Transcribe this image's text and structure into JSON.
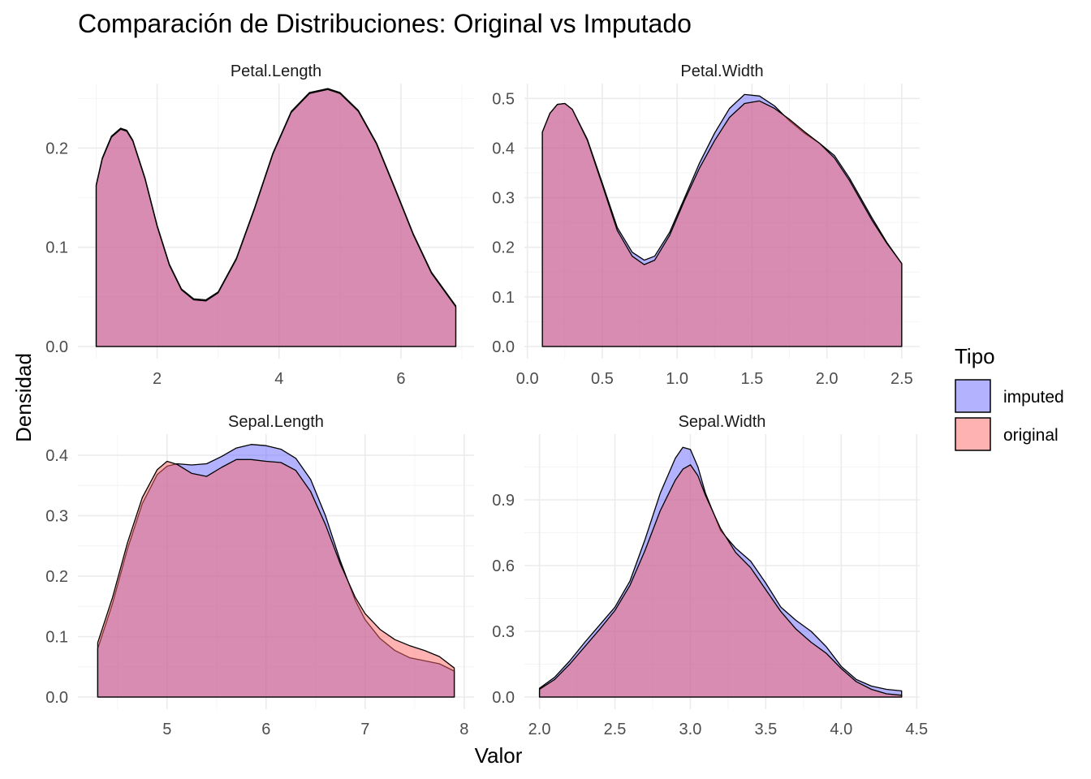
{
  "title": "Comparación de Distribuciones: Original vs Imputado",
  "xlabel": "Valor",
  "ylabel": "Densidad",
  "legend": {
    "title": "Tipo",
    "items": [
      {
        "label": "imputed",
        "color": "#6666ff"
      },
      {
        "label": "original",
        "color": "#ff6666"
      }
    ]
  },
  "colors": {
    "imputed": "#6666ff",
    "original": "#ff6666",
    "outline": "#000000"
  },
  "chart_data": [
    {
      "type": "area",
      "facet": "Petal.Length",
      "xlim": [
        0.7,
        7.2
      ],
      "ylim": [
        0,
        0.265
      ],
      "xticks": [
        2,
        4,
        6
      ],
      "xtick_labels": [
        "2",
        "4",
        "6"
      ],
      "yticks": [
        0.0,
        0.1,
        0.2
      ],
      "ytick_labels": [
        "0.0",
        "0.1",
        "0.2"
      ],
      "series": [
        {
          "name": "imputed",
          "x": [
            1.0,
            1.1,
            1.25,
            1.4,
            1.5,
            1.6,
            1.8,
            2.0,
            2.2,
            2.4,
            2.6,
            2.8,
            3.0,
            3.3,
            3.6,
            3.9,
            4.2,
            4.5,
            4.8,
            5.0,
            5.3,
            5.6,
            5.9,
            6.2,
            6.5,
            6.9
          ],
          "y": [
            0.163,
            0.19,
            0.212,
            0.22,
            0.218,
            0.208,
            0.17,
            0.122,
            0.083,
            0.058,
            0.048,
            0.047,
            0.055,
            0.089,
            0.14,
            0.195,
            0.237,
            0.256,
            0.26,
            0.256,
            0.238,
            0.205,
            0.16,
            0.114,
            0.075,
            0.041
          ]
        },
        {
          "name": "original",
          "x": [
            1.0,
            1.1,
            1.25,
            1.4,
            1.5,
            1.6,
            1.8,
            2.0,
            2.2,
            2.4,
            2.6,
            2.8,
            3.0,
            3.3,
            3.6,
            3.9,
            4.2,
            4.5,
            4.8,
            5.0,
            5.3,
            5.6,
            5.9,
            6.2,
            6.5,
            6.9
          ],
          "y": [
            0.162,
            0.189,
            0.211,
            0.219,
            0.217,
            0.207,
            0.169,
            0.121,
            0.082,
            0.057,
            0.047,
            0.046,
            0.054,
            0.088,
            0.139,
            0.194,
            0.236,
            0.255,
            0.259,
            0.255,
            0.237,
            0.204,
            0.159,
            0.113,
            0.074,
            0.04
          ]
        }
      ]
    },
    {
      "type": "area",
      "facet": "Petal.Width",
      "xlim": [
        -0.02,
        2.62
      ],
      "ylim": [
        0,
        0.53
      ],
      "xticks": [
        0.0,
        0.5,
        1.0,
        1.5,
        2.0,
        2.5
      ],
      "xtick_labels": [
        "0.0",
        "0.5",
        "1.0",
        "1.5",
        "2.0",
        "2.5"
      ],
      "yticks": [
        0.0,
        0.1,
        0.2,
        0.3,
        0.4,
        0.5
      ],
      "ytick_labels": [
        "0.0",
        "0.1",
        "0.2",
        "0.3",
        "0.4",
        "0.5"
      ],
      "series": [
        {
          "name": "imputed",
          "x": [
            0.1,
            0.15,
            0.2,
            0.25,
            0.3,
            0.4,
            0.5,
            0.6,
            0.7,
            0.78,
            0.85,
            0.95,
            1.05,
            1.15,
            1.25,
            1.35,
            1.45,
            1.55,
            1.65,
            1.75,
            1.85,
            1.95,
            2.05,
            2.15,
            2.3,
            2.4,
            2.5
          ],
          "y": [
            0.432,
            0.47,
            0.488,
            0.49,
            0.478,
            0.418,
            0.33,
            0.24,
            0.19,
            0.174,
            0.182,
            0.23,
            0.3,
            0.37,
            0.43,
            0.48,
            0.508,
            0.505,
            0.485,
            0.455,
            0.43,
            0.41,
            0.385,
            0.34,
            0.26,
            0.21,
            0.167
          ]
        },
        {
          "name": "original",
          "x": [
            0.1,
            0.15,
            0.2,
            0.25,
            0.3,
            0.4,
            0.5,
            0.6,
            0.7,
            0.78,
            0.85,
            0.95,
            1.05,
            1.15,
            1.25,
            1.35,
            1.45,
            1.55,
            1.65,
            1.75,
            1.85,
            1.95,
            2.05,
            2.15,
            2.3,
            2.4,
            2.5
          ],
          "y": [
            0.432,
            0.47,
            0.488,
            0.49,
            0.478,
            0.416,
            0.326,
            0.234,
            0.182,
            0.165,
            0.174,
            0.224,
            0.295,
            0.36,
            0.415,
            0.462,
            0.49,
            0.495,
            0.48,
            0.458,
            0.433,
            0.41,
            0.38,
            0.335,
            0.255,
            0.208,
            0.167
          ]
        }
      ]
    },
    {
      "type": "area",
      "facet": "Sepal.Length",
      "xlim": [
        4.1,
        8.1
      ],
      "ylim": [
        0,
        0.435
      ],
      "xticks": [
        5,
        6,
        7,
        8
      ],
      "xtick_labels": [
        "5",
        "6",
        "7",
        "8"
      ],
      "yticks": [
        0.0,
        0.1,
        0.2,
        0.3,
        0.4
      ],
      "ytick_labels": [
        "0.0",
        "0.1",
        "0.2",
        "0.3",
        "0.4"
      ],
      "series": [
        {
          "name": "imputed",
          "x": [
            4.3,
            4.45,
            4.6,
            4.75,
            4.9,
            5.0,
            5.1,
            5.25,
            5.4,
            5.55,
            5.7,
            5.85,
            6.0,
            6.15,
            6.3,
            6.45,
            6.6,
            6.75,
            6.9,
            7.0,
            7.15,
            7.3,
            7.45,
            7.6,
            7.75,
            7.9
          ],
          "y": [
            0.08,
            0.155,
            0.245,
            0.32,
            0.368,
            0.382,
            0.386,
            0.384,
            0.386,
            0.398,
            0.412,
            0.418,
            0.416,
            0.41,
            0.395,
            0.36,
            0.3,
            0.225,
            0.16,
            0.128,
            0.097,
            0.077,
            0.065,
            0.06,
            0.055,
            0.043
          ]
        },
        {
          "name": "original",
          "x": [
            4.3,
            4.45,
            4.6,
            4.75,
            4.9,
            5.0,
            5.1,
            5.25,
            5.4,
            5.55,
            5.7,
            5.85,
            6.0,
            6.15,
            6.3,
            6.45,
            6.6,
            6.75,
            6.9,
            7.0,
            7.15,
            7.3,
            7.45,
            7.6,
            7.75,
            7.9
          ],
          "y": [
            0.09,
            0.165,
            0.255,
            0.33,
            0.376,
            0.39,
            0.385,
            0.37,
            0.365,
            0.38,
            0.393,
            0.393,
            0.39,
            0.388,
            0.375,
            0.34,
            0.285,
            0.22,
            0.165,
            0.138,
            0.112,
            0.095,
            0.085,
            0.077,
            0.067,
            0.048
          ]
        }
      ]
    },
    {
      "type": "area",
      "facet": "Sepal.Width",
      "xlim": [
        1.9,
        4.52
      ],
      "ylim": [
        0,
        1.2
      ],
      "xticks": [
        2.0,
        2.5,
        3.0,
        3.5,
        4.0,
        4.5
      ],
      "xtick_labels": [
        "2.0",
        "2.5",
        "3.0",
        "3.5",
        "4.0",
        "4.5"
      ],
      "yticks": [
        0.0,
        0.3,
        0.6,
        0.9
      ],
      "ytick_labels": [
        "0.0",
        "0.3",
        "0.6",
        "0.9"
      ],
      "series": [
        {
          "name": "imputed",
          "x": [
            2.0,
            2.1,
            2.2,
            2.3,
            2.4,
            2.5,
            2.6,
            2.7,
            2.8,
            2.9,
            2.95,
            3.0,
            3.05,
            3.1,
            3.2,
            3.3,
            3.4,
            3.5,
            3.6,
            3.7,
            3.8,
            3.9,
            4.0,
            4.1,
            4.2,
            4.3,
            4.4
          ],
          "y": [
            0.04,
            0.09,
            0.165,
            0.25,
            0.33,
            0.41,
            0.53,
            0.72,
            0.93,
            1.09,
            1.14,
            1.13,
            1.05,
            0.93,
            0.76,
            0.68,
            0.62,
            0.52,
            0.41,
            0.35,
            0.3,
            0.23,
            0.14,
            0.08,
            0.05,
            0.035,
            0.028
          ]
        },
        {
          "name": "original",
          "x": [
            2.0,
            2.1,
            2.2,
            2.3,
            2.4,
            2.5,
            2.6,
            2.7,
            2.8,
            2.9,
            2.95,
            3.0,
            3.05,
            3.1,
            3.2,
            3.3,
            3.4,
            3.5,
            3.6,
            3.7,
            3.8,
            3.9,
            4.0,
            4.1,
            4.2,
            4.3,
            4.4
          ],
          "y": [
            0.035,
            0.08,
            0.15,
            0.23,
            0.31,
            0.395,
            0.51,
            0.67,
            0.85,
            0.99,
            1.04,
            1.06,
            1.01,
            0.92,
            0.77,
            0.66,
            0.59,
            0.49,
            0.39,
            0.31,
            0.25,
            0.2,
            0.13,
            0.07,
            0.035,
            0.015,
            0.008
          ]
        }
      ]
    }
  ]
}
